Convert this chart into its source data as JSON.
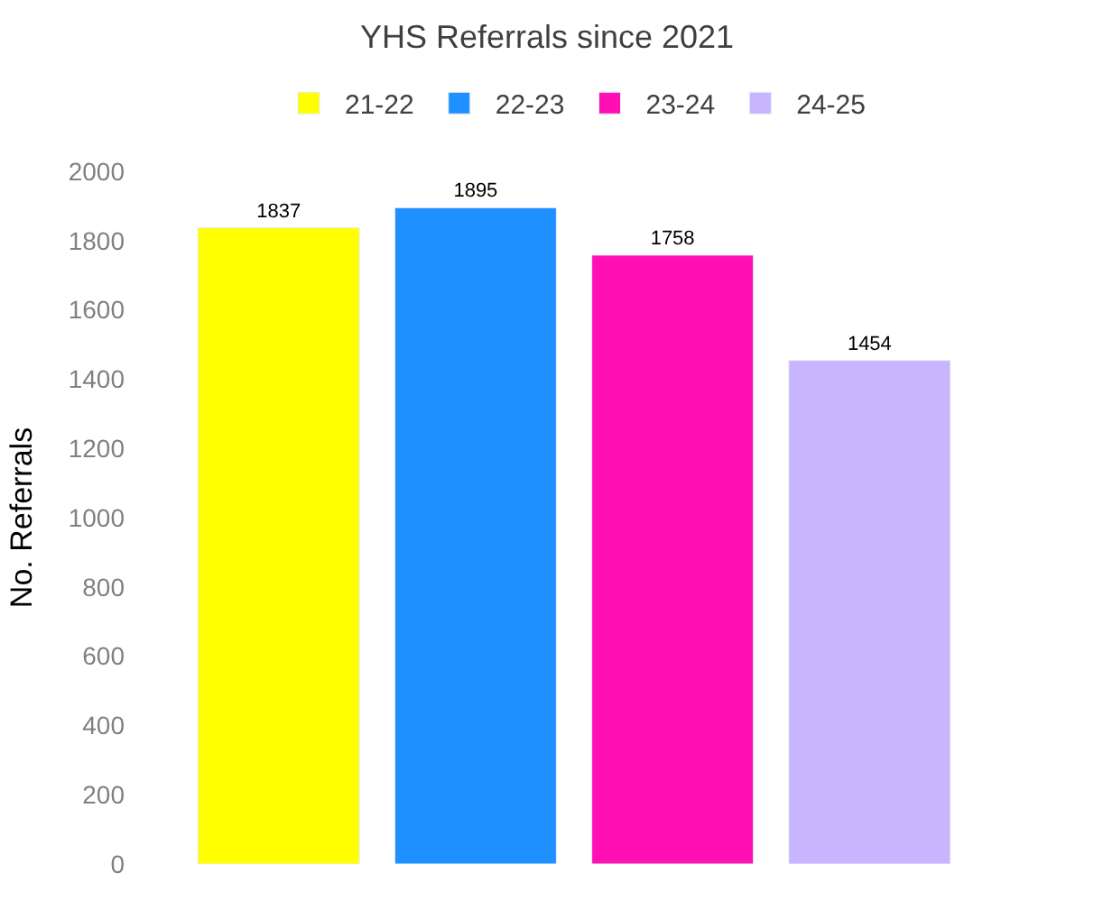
{
  "chart_data": {
    "type": "bar",
    "title": "YHS Referrals since 2021",
    "ylabel": "No. Referrals",
    "categories": [
      null
    ],
    "series": [
      {
        "name": "21-22",
        "color": "#ffff00",
        "values": [
          1837
        ]
      },
      {
        "name": "22-23",
        "color": "#1e90ff",
        "values": [
          1895
        ]
      },
      {
        "name": "23-24",
        "color": "#ff10b4",
        "values": [
          1758
        ]
      },
      {
        "name": "24-25",
        "color": "#c8b4ff",
        "values": [
          1454
        ]
      }
    ],
    "ylim": [
      0,
      2000
    ],
    "yticks": [
      0,
      200,
      400,
      600,
      800,
      1000,
      1200,
      1400,
      1600,
      1800,
      2000
    ],
    "data_labels": true,
    "legend": "top",
    "tick_labels": "y"
  }
}
